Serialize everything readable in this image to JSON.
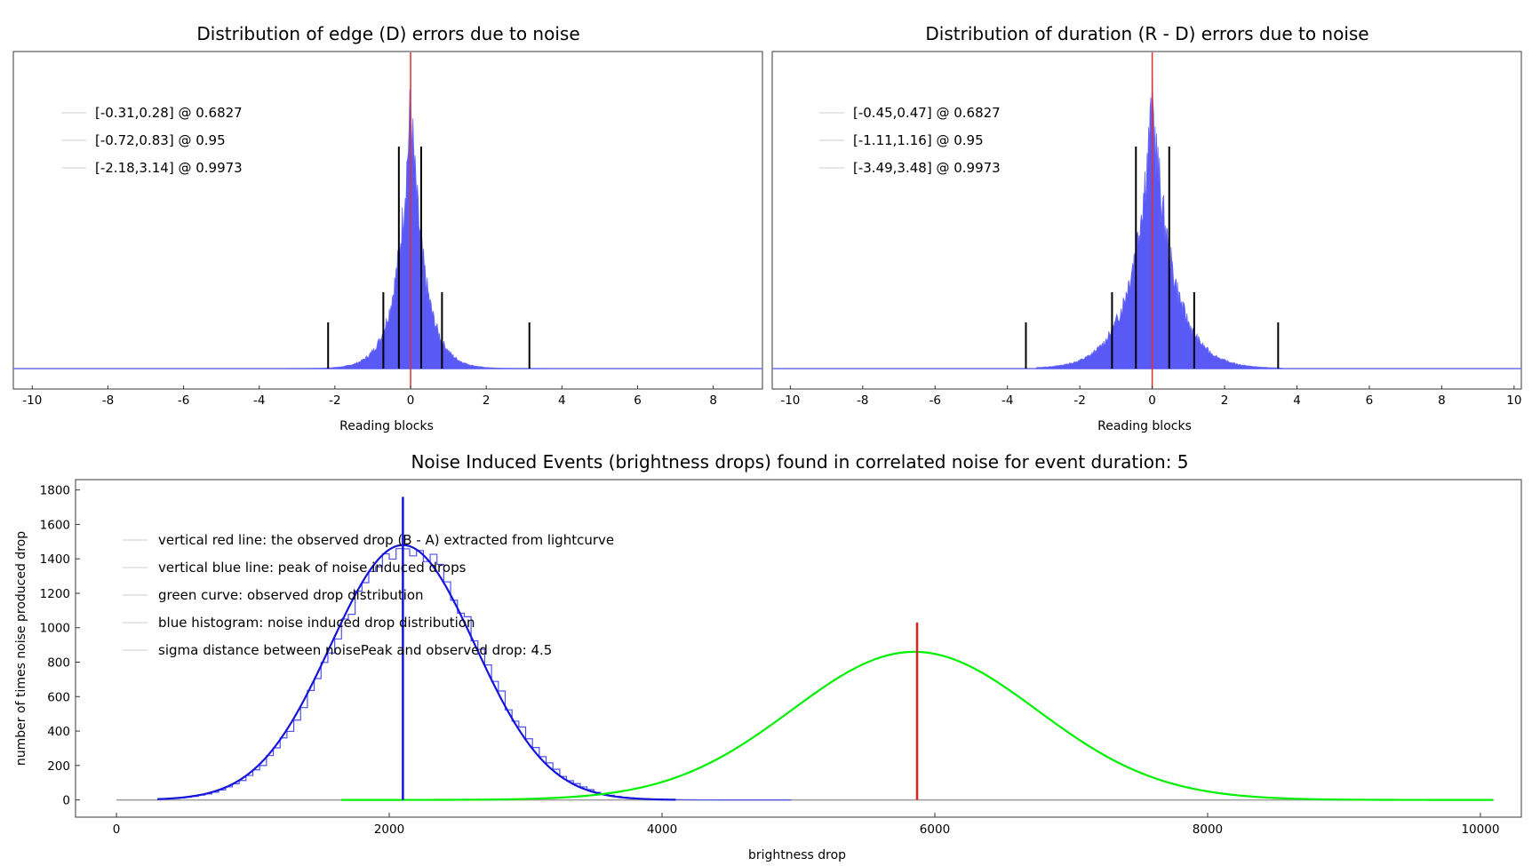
{
  "charts": {
    "edge": {
      "title": "Distribution of edge (D) errors due to noise",
      "xlabel": "Reading blocks",
      "xticks": [
        "-10",
        "-8",
        "-6",
        "-4",
        "-2",
        "0",
        "2",
        "4",
        "6",
        "8"
      ],
      "legend": [
        "[-0.31,0.28] @ 0.6827",
        "[-0.72,0.83] @ 0.95",
        "[-2.18,3.14] @ 0.9973"
      ]
    },
    "duration": {
      "title": "Distribution of duration (R - D) errors due to noise",
      "xlabel": "Reading blocks",
      "xticks": [
        "-10",
        "-8",
        "-6",
        "-4",
        "-2",
        "0",
        "2",
        "4",
        "6",
        "8",
        "10"
      ],
      "legend": [
        "[-0.45,0.47] @ 0.6827",
        "[-1.11,1.16] @ 0.95",
        "[-3.49,3.48] @ 0.9973"
      ]
    },
    "noise": {
      "title": "Noise Induced Events (brightness drops) found in correlated noise for event duration: 5",
      "xlabel": "brightness drop",
      "ylabel": "number of times noise produced drop",
      "xticks": [
        "0",
        "2000",
        "4000",
        "6000",
        "8000",
        "10000"
      ],
      "yticks": [
        "0",
        "200",
        "400",
        "600",
        "800",
        "1000",
        "1200",
        "1400",
        "1600",
        "1800"
      ],
      "legend": [
        "vertical red line: the observed drop (B - A) extracted from lightcurve",
        "vertical blue line: peak of noise induced drops",
        "green curve: observed drop distribution",
        "blue histogram: noise induced drop distribution",
        "sigma distance between noisePeak and observed drop: 4.5"
      ]
    }
  },
  "chart_data": [
    {
      "type": "histogram",
      "title": "Distribution of edge (D) errors due to noise",
      "xlabel": "Reading blocks",
      "xlim": [
        -10.5,
        9.3
      ],
      "peak_center": 0,
      "observed_line_x": 0,
      "observed_line_color": "#e03030",
      "histogram_color": "#4b4bf5",
      "confidence_intervals": [
        {
          "low": -0.31,
          "high": 0.28,
          "level": 0.6827
        },
        {
          "low": -0.72,
          "high": 0.83,
          "level": 0.95
        },
        {
          "low": -2.18,
          "high": 3.14,
          "level": 0.9973
        }
      ]
    },
    {
      "type": "histogram",
      "title": "Distribution of duration (R - D) errors due to noise",
      "xlabel": "Reading blocks",
      "xlim": [
        -10.5,
        10.2
      ],
      "peak_center": 0,
      "observed_line_x": 0,
      "observed_line_color": "#e03030",
      "histogram_color": "#4b4bf5",
      "confidence_intervals": [
        {
          "low": -0.45,
          "high": 0.47,
          "level": 0.6827
        },
        {
          "low": -1.11,
          "high": 1.16,
          "level": 0.95
        },
        {
          "low": -3.49,
          "high": 3.48,
          "level": 0.9973
        }
      ]
    },
    {
      "type": "line",
      "title": "Noise Induced Events (brightness drops) found in correlated noise for event duration: 5",
      "xlabel": "brightness drop",
      "ylabel": "number of times noise produced drop",
      "xlim": [
        -300,
        10300
      ],
      "ylim": [
        -100,
        1860
      ],
      "series": [
        {
          "color": "#1414dc",
          "kind": "histogram+fit",
          "x": [
            300,
            1000,
            1500,
            2000,
            2100,
            2500,
            3000,
            3500,
            4000,
            4900
          ],
          "y": [
            0,
            80,
            700,
            1450,
            1480,
            1200,
            500,
            100,
            10,
            0
          ]
        },
        {
          "color": "#00f000",
          "kind": "curve",
          "x": [
            1650,
            3000,
            4000,
            5000,
            5850,
            7000,
            8000,
            9000,
            10100
          ],
          "y": [
            0,
            20,
            200,
            550,
            860,
            530,
            120,
            10,
            0
          ]
        }
      ],
      "vertical_lines": [
        {
          "x": 2100,
          "color": "#1414dc",
          "top": 1760
        },
        {
          "x": 5870,
          "color": "#e02020",
          "top": 1030
        }
      ]
    }
  ]
}
